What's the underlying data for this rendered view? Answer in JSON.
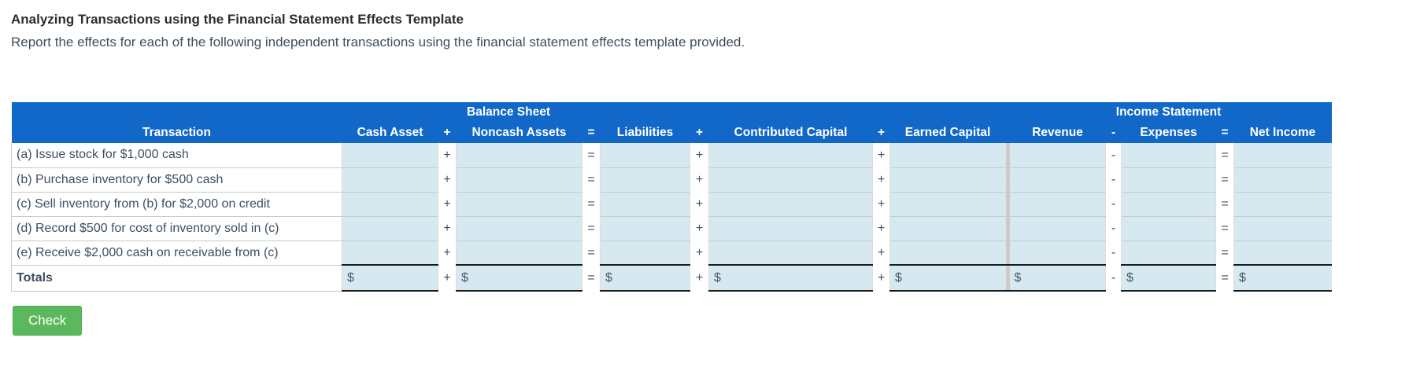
{
  "page": {
    "title": "Analyzing Transactions using the Financial Statement Effects Template",
    "subtitle": "Report the effects for each of the following independent transactions using the financial statement effects template provided."
  },
  "table": {
    "group_headers": {
      "balance_sheet": "Balance Sheet",
      "income_statement": "Income Statement"
    },
    "column_headers": {
      "transaction": "Transaction",
      "cash_asset": "Cash Asset",
      "noncash_assets": "Noncash Assets",
      "liabilities": "Liabilities",
      "contributed_capital": "Contributed Capital",
      "earned_capital": "Earned Capital",
      "revenue": "Revenue",
      "expenses": "Expenses",
      "net_income": "Net Income"
    },
    "operators": {
      "plus": "+",
      "equals": "=",
      "minus": "-"
    },
    "rows": [
      {
        "label": "(a) Issue stock for $1,000 cash",
        "values": [
          "",
          "",
          "",
          "",
          "",
          "",
          "",
          ""
        ]
      },
      {
        "label": "(b) Purchase inventory for $500 cash",
        "values": [
          "",
          "",
          "",
          "",
          "",
          "",
          "",
          ""
        ]
      },
      {
        "label": "(c) Sell inventory from (b) for $2,000 on credit",
        "values": [
          "",
          "",
          "",
          "",
          "",
          "",
          "",
          ""
        ]
      },
      {
        "label": "(d) Record $500 for cost of inventory sold in (c)",
        "values": [
          "",
          "",
          "",
          "",
          "",
          "",
          "",
          ""
        ]
      },
      {
        "label": "(e) Receive $2,000 cash on receivable from (c)",
        "values": [
          "",
          "",
          "",
          "",
          "",
          "",
          "",
          ""
        ]
      }
    ],
    "totals_row": {
      "label": "Totals",
      "currency_prefix": "$",
      "values": [
        "",
        "",
        "",
        "",
        "",
        "",
        "",
        ""
      ]
    }
  },
  "actions": {
    "check_label": "Check"
  },
  "colors": {
    "header_blue": "#1268c8",
    "cell_blue": "#d6e9f0",
    "button_green": "#5cb85c",
    "divider_gray": "#cbcbcb",
    "sum_line_dark": "#1a1a1a"
  }
}
